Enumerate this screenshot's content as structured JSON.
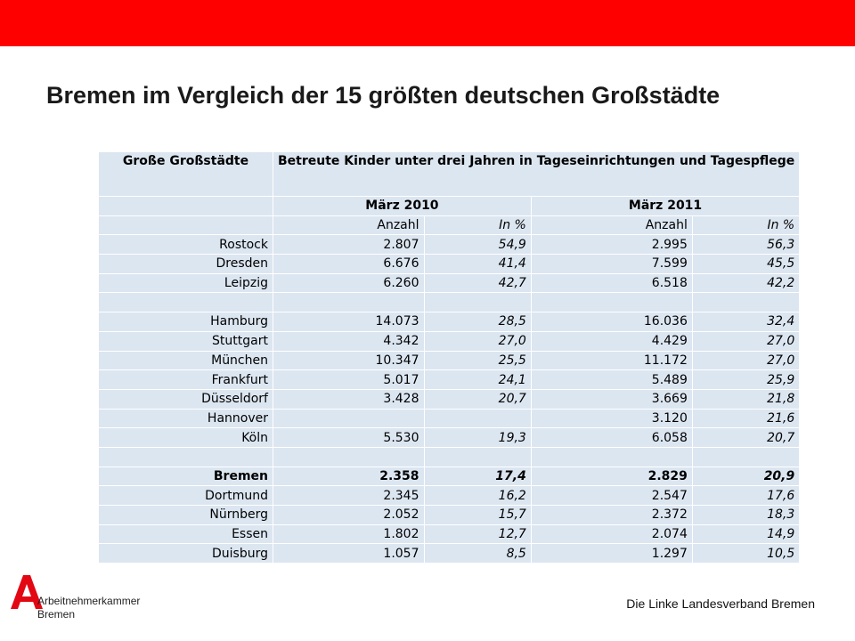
{
  "title": "Bremen im Vergleich der 15 größten deutschen Großstädte",
  "table": {
    "header_city": "Große Großstädte",
    "header_main": "Betreute Kinder unter drei Jahren in Tageseinrichtungen und Tagespflege",
    "year_2010": "März  2010",
    "year_2011": "März  2011",
    "sub_count": "Anzahl",
    "sub_pct": "In %",
    "rows": [
      {
        "city": "Rostock",
        "a10": "2.807",
        "p10": "54,9",
        "a11": "2.995",
        "p11": "56,3"
      },
      {
        "city": "Dresden",
        "a10": "6.676",
        "p10": "41,4",
        "a11": "7.599",
        "p11": "45,5"
      },
      {
        "city": "Leipzig",
        "a10": "6.260",
        "p10": "42,7",
        "a11": "6.518",
        "p11": "42,2"
      },
      {
        "city": "",
        "a10": "",
        "p10": "",
        "a11": "",
        "p11": ""
      },
      {
        "city": "Hamburg",
        "a10": "14.073",
        "p10": "28,5",
        "a11": "16.036",
        "p11": "32,4"
      },
      {
        "city": "Stuttgart",
        "a10": "4.342",
        "p10": "27,0",
        "a11": "4.429",
        "p11": "27,0"
      },
      {
        "city": "München",
        "a10": "10.347",
        "p10": "25,5",
        "a11": "11.172",
        "p11": "27,0"
      },
      {
        "city": "Frankfurt",
        "a10": "5.017",
        "p10": "24,1",
        "a11": "5.489",
        "p11": "25,9"
      },
      {
        "city": "Düsseldorf",
        "a10": "3.428",
        "p10": "20,7",
        "a11": "3.669",
        "p11": "21,8"
      },
      {
        "city": "Hannover",
        "a10": "",
        "p10": "",
        "a11": "3.120",
        "p11": "21,6"
      },
      {
        "city": "Köln",
        "a10": "5.530",
        "p10": "19,3",
        "a11": "6.058",
        "p11": "20,7"
      },
      {
        "city": "",
        "a10": "",
        "p10": "",
        "a11": "",
        "p11": ""
      },
      {
        "city": "Bremen",
        "a10": "2.358",
        "p10": "17,4",
        "a11": "2.829",
        "p11": "20,9"
      },
      {
        "city": "Dortmund",
        "a10": "2.345",
        "p10": "16,2",
        "a11": "2.547",
        "p11": "17,6"
      },
      {
        "city": "Nürnberg",
        "a10": "2.052",
        "p10": "15,7",
        "a11": "2.372",
        "p11": "18,3"
      },
      {
        "city": "Essen",
        "a10": "1.802",
        "p10": "12,7",
        "a11": "2.074",
        "p11": "14,9"
      },
      {
        "city": "Duisburg",
        "a10": "1.057",
        "p10": "8,5",
        "a11": "1.297",
        "p11": "10,5"
      }
    ]
  },
  "logo": {
    "line1": "Arbeitnehmerkammer",
    "line2": "Bremen",
    "letter": "A"
  },
  "footer": "Die Linke Landesverband Bremen",
  "colors": {
    "brand_red": "#ff0000",
    "table_fill": "#dce6f1"
  }
}
